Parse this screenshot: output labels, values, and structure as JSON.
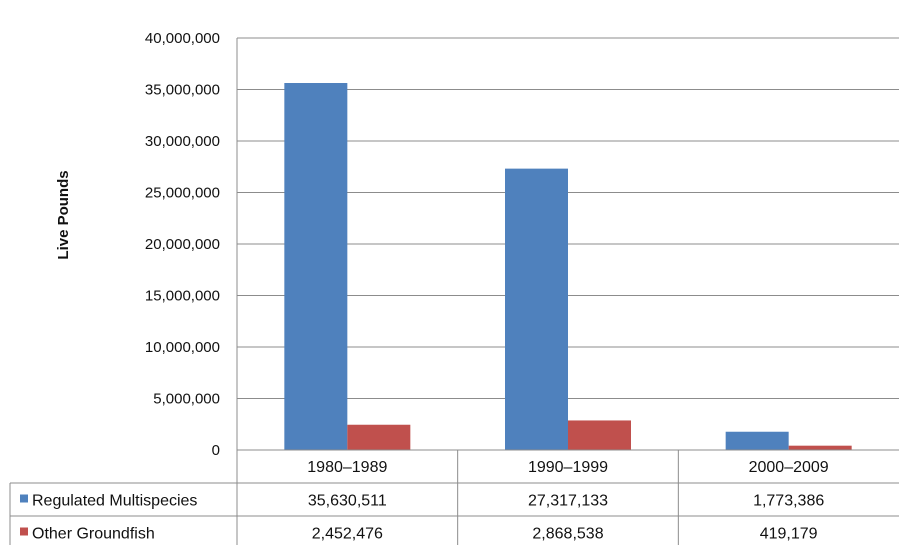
{
  "chart_data": {
    "type": "bar",
    "title": "",
    "xlabel": "",
    "ylabel": "Live Pounds",
    "ylim": [
      0,
      40000000
    ],
    "yticks": [
      0,
      5000000,
      10000000,
      15000000,
      20000000,
      25000000,
      30000000,
      35000000,
      40000000
    ],
    "ytick_labels": [
      "0",
      "5,000,000",
      "10,000,000",
      "15,000,000",
      "20,000,000",
      "25,000,000",
      "30,000,000",
      "35,000,000",
      "40,000,000"
    ],
    "grid": true,
    "legend": "data-table",
    "categories": [
      "1980–1989",
      "1990–1999",
      "2000–2009"
    ],
    "series": [
      {
        "name": "Regulated Multispecies",
        "color": "#4f81bd",
        "values": [
          35630511,
          27317133,
          1773386
        ],
        "labels": [
          "35,630,511",
          "27,317,133",
          "1,773,386"
        ]
      },
      {
        "name": "Other Groundfish",
        "color": "#c0504d",
        "values": [
          2452476,
          2868538,
          419179
        ],
        "labels": [
          "2,452,476",
          "2,868,538",
          "419,179"
        ]
      }
    ]
  }
}
